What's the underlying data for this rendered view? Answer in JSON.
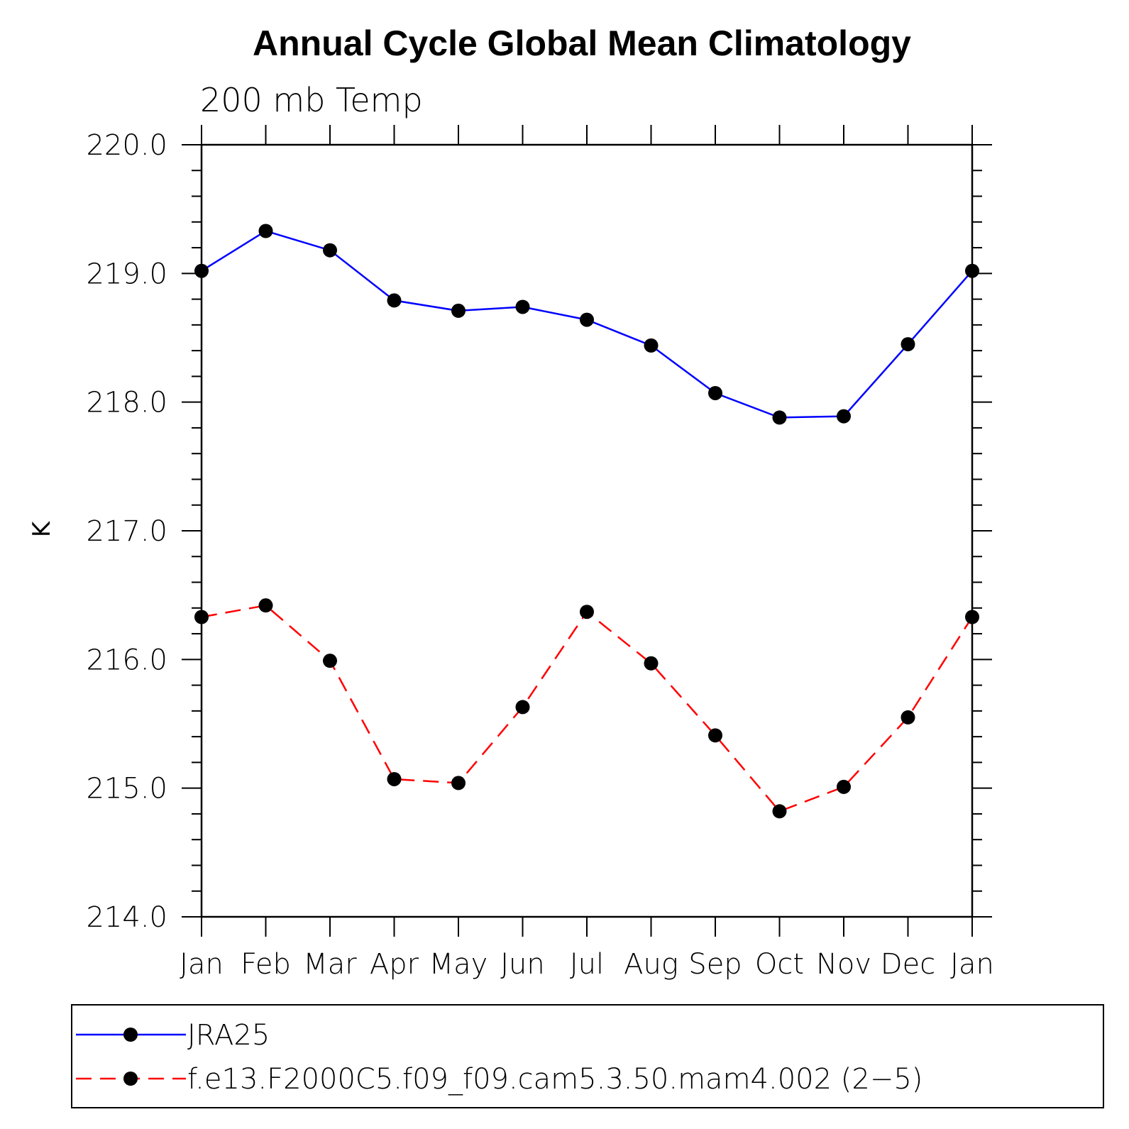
{
  "chart_data": {
    "type": "line",
    "title": "Annual Cycle Global Mean Climatology",
    "subtitle": "200 mb Temp",
    "xlabel": "",
    "ylabel": "K",
    "categories": [
      "Jan",
      "Feb",
      "Mar",
      "Apr",
      "May",
      "Jun",
      "Jul",
      "Aug",
      "Sep",
      "Oct",
      "Nov",
      "Dec",
      "Jan"
    ],
    "ylim": [
      214.0,
      220.0
    ],
    "yticks": [
      "214.0",
      "215.0",
      "216.0",
      "217.0",
      "218.0",
      "219.0",
      "220.0"
    ],
    "yminor_step": 0.2,
    "grid": false,
    "legend_position": "bottom",
    "series": [
      {
        "name": "JRA25",
        "color": "#0000ff",
        "dash": "solid",
        "marker": "filled-circle",
        "values": [
          219.02,
          219.33,
          219.18,
          218.79,
          218.71,
          218.74,
          218.64,
          218.44,
          218.07,
          217.88,
          217.89,
          218.45,
          219.02
        ]
      },
      {
        "name": "f.e13.F2000C5.f09_f09.cam5.3.50.mam4.002 (2−5)",
        "color": "#ff0000",
        "dash": "dashed",
        "marker": "filled-circle",
        "values": [
          216.33,
          216.42,
          215.99,
          215.07,
          215.04,
          215.63,
          216.37,
          215.97,
          215.41,
          214.82,
          215.01,
          215.55,
          216.33
        ]
      }
    ]
  }
}
